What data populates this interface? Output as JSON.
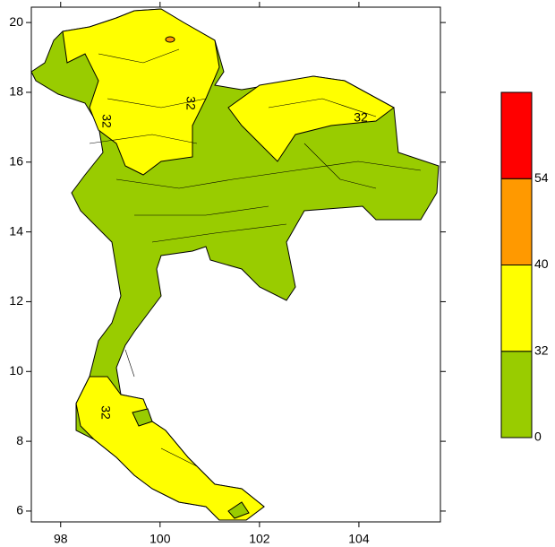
{
  "map": {
    "xlim": [
      97.41,
      105.64
    ],
    "ylim": [
      5.69,
      20.44
    ],
    "xticks": [
      98,
      100,
      102,
      104
    ],
    "yticks": [
      6,
      8,
      10,
      12,
      14,
      16,
      18,
      20
    ],
    "contour_labels": [
      "32",
      "32",
      "32",
      "32"
    ]
  },
  "colorbar": {
    "levels": [
      0,
      32,
      40,
      54
    ],
    "colors": [
      "#99cc00",
      "#ffff00",
      "#ff9900",
      "#ff0000"
    ]
  }
}
